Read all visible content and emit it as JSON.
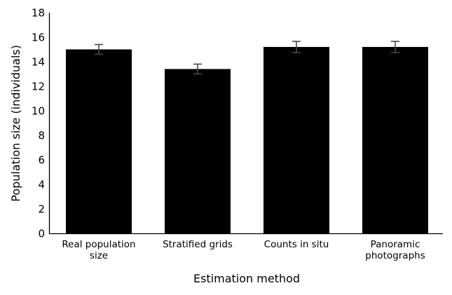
{
  "chart_data": {
    "type": "bar",
    "title": "",
    "xlabel": "Estimation method",
    "ylabel": "Population size (individuals)",
    "ylim": [
      0,
      18
    ],
    "yticks": [
      0,
      2,
      4,
      6,
      8,
      10,
      12,
      14,
      16,
      18
    ],
    "grid": false,
    "legend": "none",
    "categories": [
      [
        "Real population",
        "size"
      ],
      [
        "Stratified grids"
      ],
      [
        "Counts in situ"
      ],
      [
        "Panoramic",
        "photographs"
      ]
    ],
    "values": [
      15.0,
      13.4,
      15.2,
      15.2
    ],
    "errors": [
      0.4,
      0.4,
      0.45,
      0.45
    ],
    "colors": {
      "bar": "#000000",
      "error_bar": "#4a4a4a",
      "axis": "#000000"
    }
  }
}
